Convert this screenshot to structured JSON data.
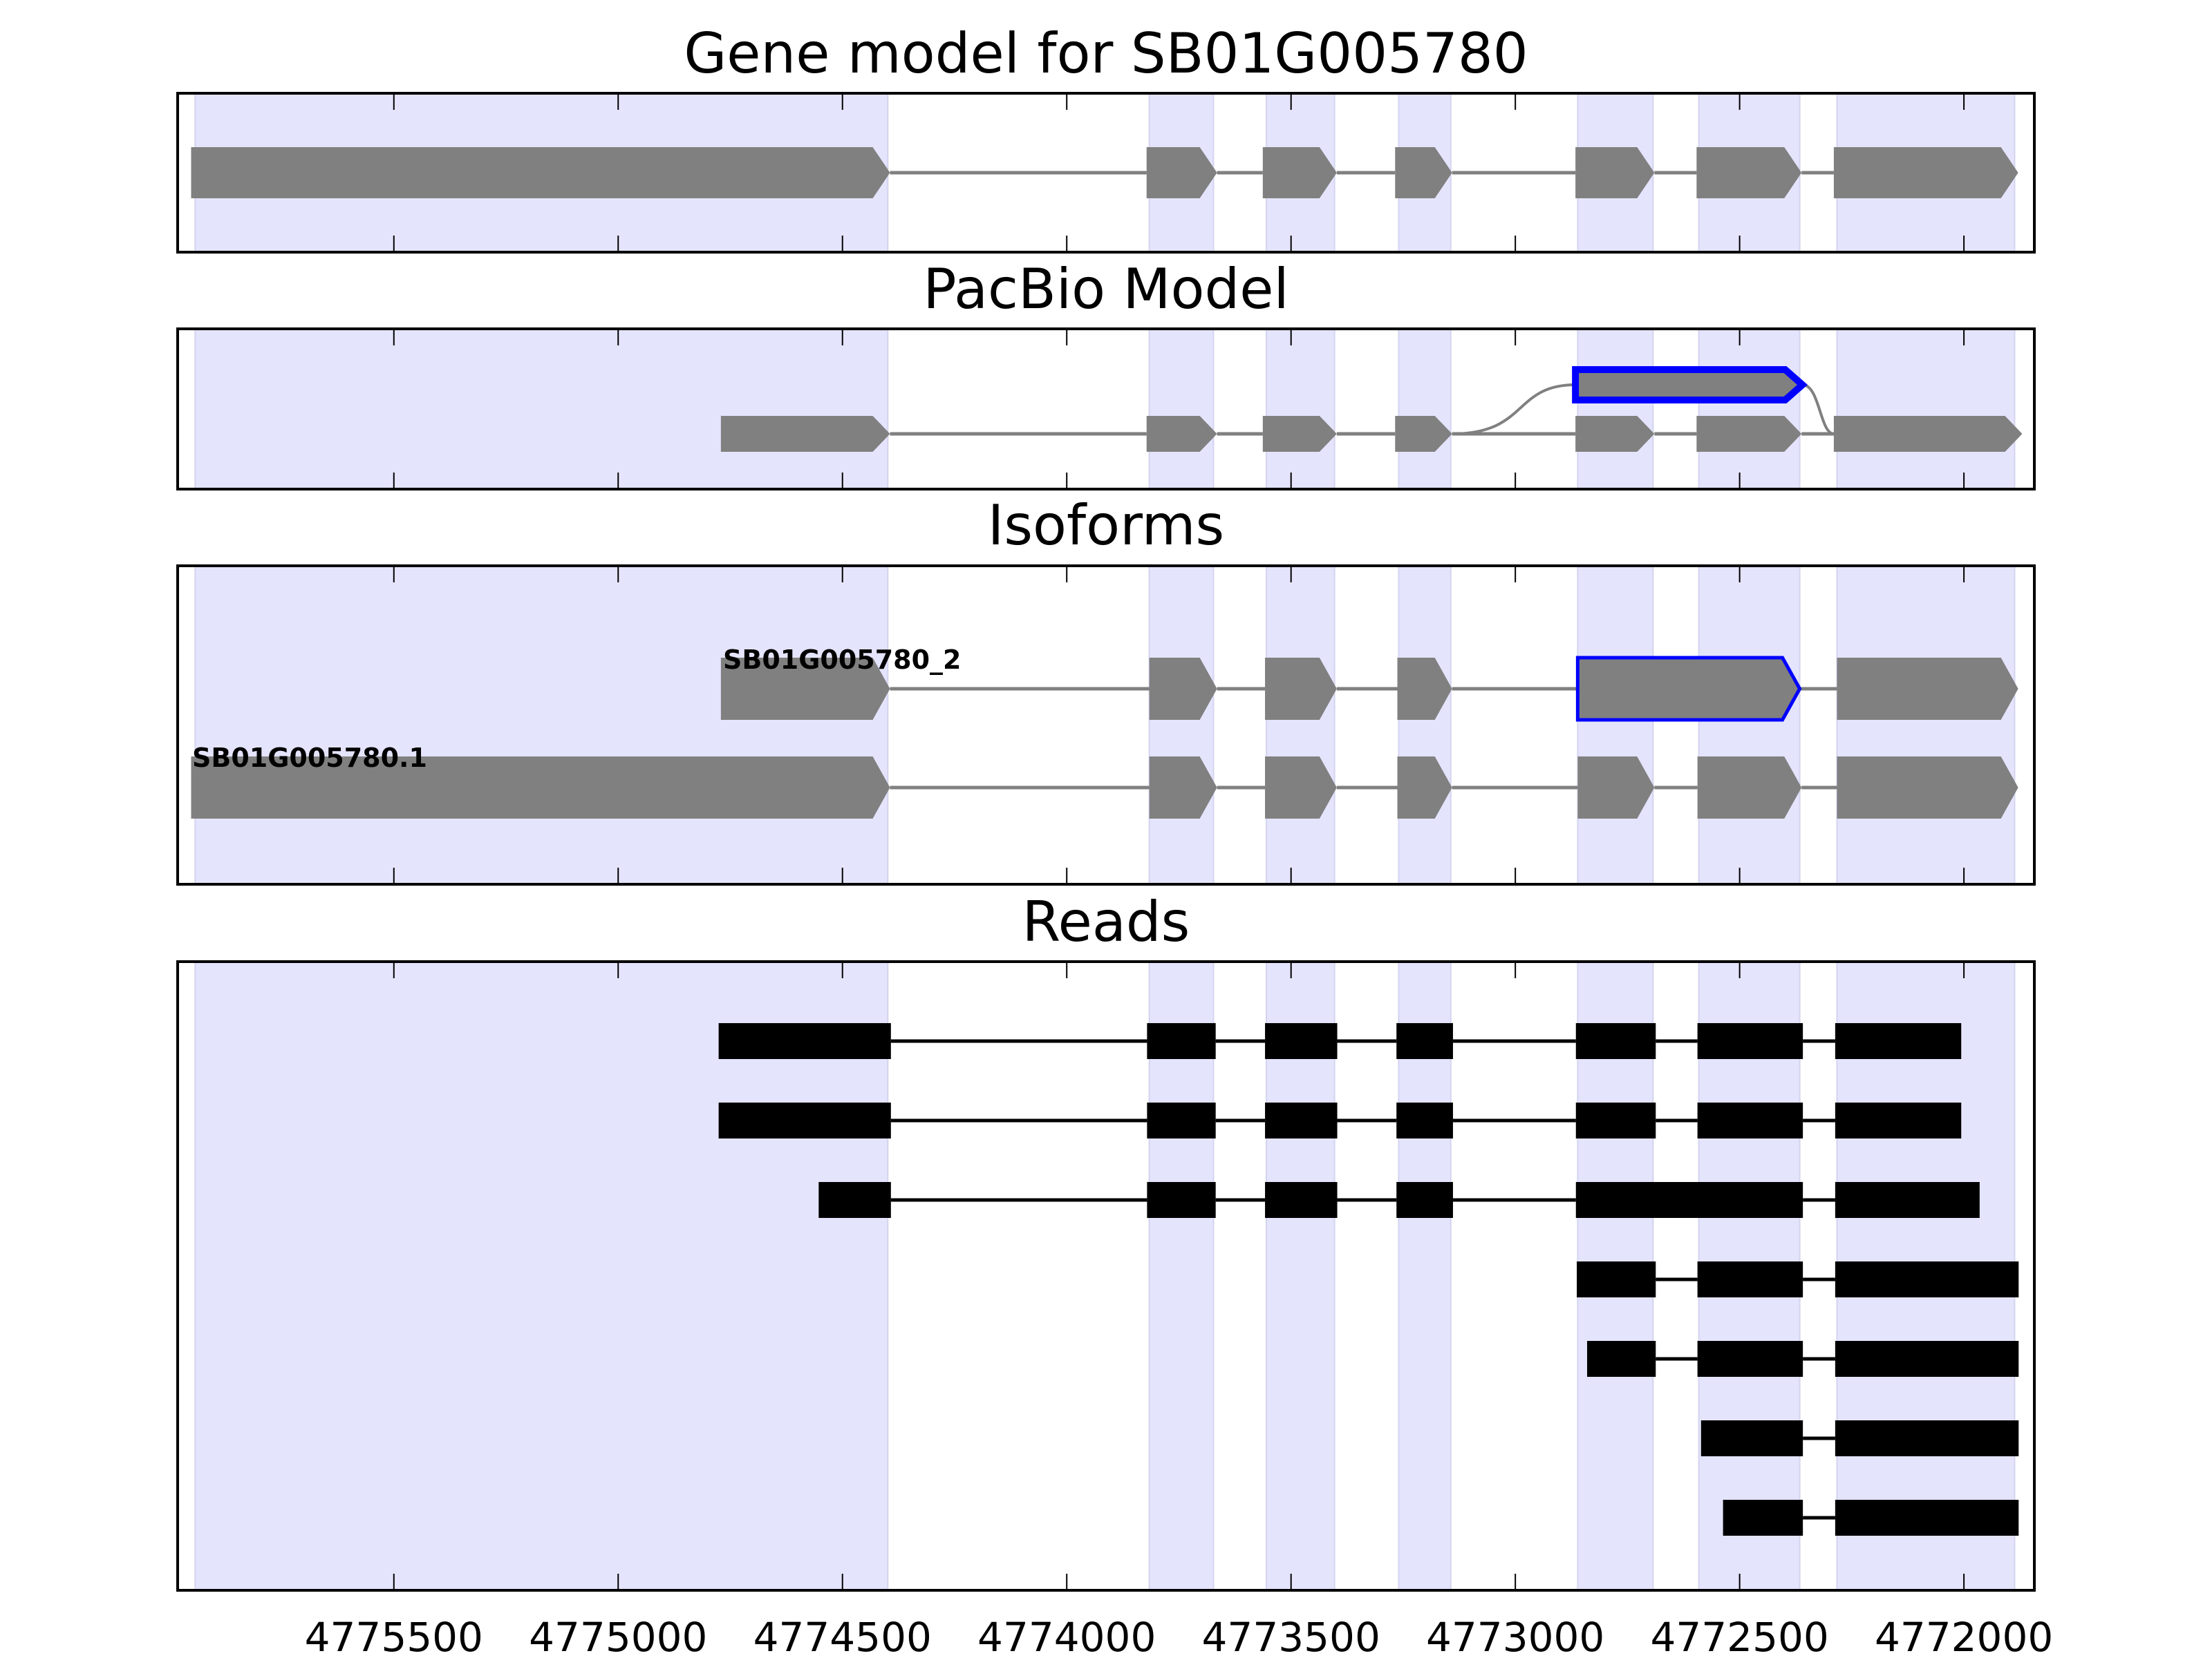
{
  "chart_data": {
    "type": "genomic-tracks",
    "xlim": [
      4775982,
      4771843
    ],
    "x_reversed": true,
    "xticks": [
      4775500,
      4775000,
      4774500,
      4774000,
      4773500,
      4773000,
      4772500,
      4772000
    ],
    "xtick_labels": [
      "4775500",
      "4775000",
      "4774500",
      "4774000",
      "4773500",
      "4773000",
      "4772500",
      "4772000"
    ],
    "grid": false,
    "colors": {
      "shading": "#e4e4fd",
      "exon": "#808080",
      "intron": "#808080",
      "read": "#000000",
      "highlight": "#0000ff"
    },
    "shaded_regions": [
      [
        4775943,
        4774399
      ],
      [
        4773816,
        4773673
      ],
      [
        4773555,
        4773403
      ],
      [
        4773260,
        4773144
      ],
      [
        4772861,
        4772693
      ],
      [
        4772591,
        4772366
      ],
      [
        4772283,
        4771887
      ]
    ],
    "panels": [
      {
        "title": "Gene model for SB01G005780",
        "rows": [
          {
            "exons": [
              [
                4775952,
                4774394
              ],
              [
                4773822,
                4773665
              ],
              [
                4773563,
                4773398
              ],
              [
                4773268,
                4773141
              ],
              [
                4772866,
                4772690
              ],
              [
                4772596,
                4772362
              ],
              [
                4772290,
                4771879
              ]
            ]
          }
        ]
      },
      {
        "title": "PacBio Model",
        "rows": [
          {
            "exons": [
              [
                4774771,
                4774394
              ],
              [
                4773822,
                4773665
              ],
              [
                4773563,
                4773398
              ],
              [
                4773268,
                4773141
              ],
              [
                4772866,
                4772690
              ],
              [
                4772596,
                4772362
              ],
              [
                4772290,
                4771870
              ]
            ]
          }
        ],
        "alternative_exon": {
          "exon": [
            4772866,
            4772360
          ],
          "from_exon_end": 4773141,
          "to_exon_start": 4772290
        }
      },
      {
        "title": "Isoforms",
        "rows": [
          {
            "label": "SB01G005780_2",
            "exons": [
              [
                4774771,
                4774394
              ],
              [
                4773816,
                4773665
              ],
              [
                4773558,
                4773398
              ],
              [
                4773263,
                4773141
              ],
              [
                4772861,
                4772366
              ],
              [
                4772283,
                4771879
              ]
            ],
            "highlight_exon": 4
          },
          {
            "label": "SB01G005780.1",
            "exons": [
              [
                4775952,
                4774394
              ],
              [
                4773816,
                4773665
              ],
              [
                4773558,
                4773398
              ],
              [
                4773263,
                4773141
              ],
              [
                4772861,
                4772690
              ],
              [
                4772594,
                4772362
              ],
              [
                4772283,
                4771879
              ]
            ]
          }
        ]
      },
      {
        "title": "Reads",
        "rows": [
          {
            "exons": [
              [
                4774776,
                4774392
              ],
              [
                4773821,
                4773668
              ],
              [
                4773558,
                4773397
              ],
              [
                4773265,
                4773139
              ],
              [
                4772865,
                4772687
              ],
              [
                4772594,
                4772359
              ],
              [
                4772287,
                4772006
              ]
            ]
          },
          {
            "exons": [
              [
                4774776,
                4774392
              ],
              [
                4773821,
                4773668
              ],
              [
                4773558,
                4773397
              ],
              [
                4773265,
                4773139
              ],
              [
                4772865,
                4772687
              ],
              [
                4772594,
                4772359
              ],
              [
                4772287,
                4772006
              ]
            ]
          },
          {
            "exons": [
              [
                4774553,
                4774392
              ],
              [
                4773821,
                4773668
              ],
              [
                4773558,
                4773397
              ],
              [
                4773265,
                4773139
              ],
              [
                4772865,
                4772359
              ],
              [
                4772287,
                4771965
              ]
            ]
          },
          {
            "exons": [
              [
                4772863,
                4772687
              ],
              [
                4772594,
                4772359
              ],
              [
                4772287,
                4771878
              ]
            ]
          },
          {
            "exons": [
              [
                4772840,
                4772687
              ],
              [
                4772594,
                4772359
              ],
              [
                4772287,
                4771878
              ]
            ]
          },
          {
            "exons": [
              [
                4772586,
                4772359
              ],
              [
                4772287,
                4771878
              ]
            ]
          },
          {
            "exons": [
              [
                4772537,
                4772359
              ],
              [
                4772287,
                4771878
              ]
            ]
          }
        ]
      }
    ]
  }
}
